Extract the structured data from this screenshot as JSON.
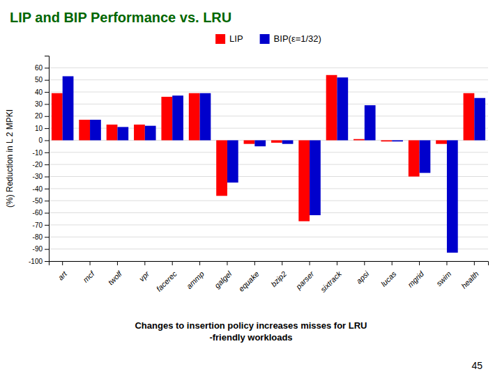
{
  "chart_data": {
    "type": "bar",
    "title": "LIP and BIP Performance vs. LRU",
    "subtitle": "Changes to insertion policy increases misses for LRU\n-friendly workloads",
    "ylabel": "(%) Reduction in L 2 MPKI",
    "annotations": [
      "45"
    ],
    "categories": [
      "art",
      "mcf",
      "twolf",
      "vpr",
      "facerec",
      "ammp",
      "galgel",
      "equake",
      "bzip2",
      "parser",
      "sixtrack",
      "apsi",
      "lucas",
      "mgrid",
      "swim",
      "health"
    ],
    "series": [
      {
        "name": "LIP",
        "color": "#FF0000",
        "values": [
          39,
          17,
          13,
          13,
          36,
          39,
          -46,
          -3,
          -2,
          -67,
          54,
          1,
          -1,
          -30,
          -3,
          39
        ]
      },
      {
        "name": "BIP(ε=1/32)",
        "color": "#0000CC",
        "values": [
          53,
          17,
          11,
          12,
          37,
          39,
          -35,
          -5,
          -3,
          -62,
          52,
          29,
          -1,
          -27,
          -93,
          35
        ]
      }
    ],
    "ylim": [
      -100,
      70
    ],
    "yticks": [
      -100,
      -90,
      -80,
      -70,
      -60,
      -50,
      -40,
      -30,
      -20,
      -10,
      0,
      10,
      20,
      30,
      40,
      50,
      60
    ],
    "grid": true,
    "legend": "top"
  }
}
